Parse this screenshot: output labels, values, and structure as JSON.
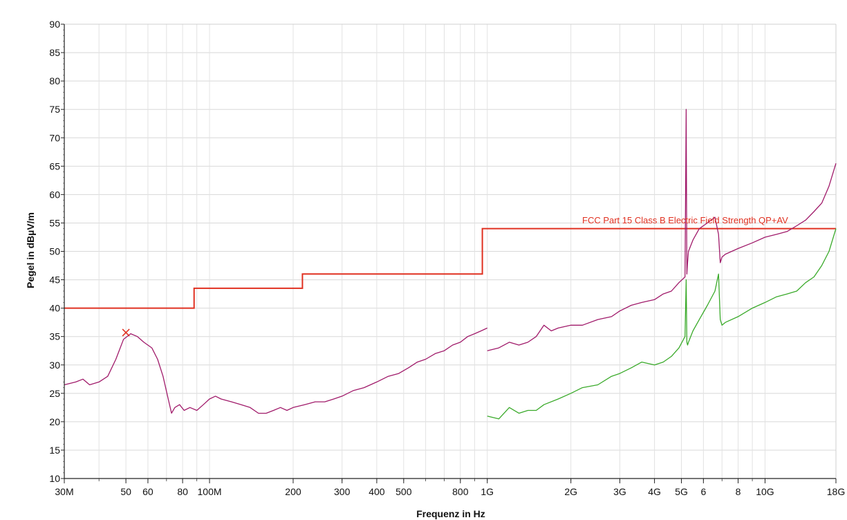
{
  "chart_data": {
    "type": "line",
    "xlabel": "Frequenz in Hz",
    "ylabel": "Pegel in dBµV/m",
    "x_scale": "log",
    "xlim": [
      30000000,
      18000000000
    ],
    "ylim": [
      10,
      90
    ],
    "grid": true,
    "y_ticks": [
      10,
      15,
      20,
      25,
      30,
      35,
      40,
      45,
      50,
      55,
      60,
      65,
      70,
      75,
      80,
      85,
      90
    ],
    "x_ticks": [
      {
        "value": 30000000,
        "label": "30M"
      },
      {
        "value": 50000000,
        "label": "50"
      },
      {
        "value": 60000000,
        "label": "60"
      },
      {
        "value": 80000000,
        "label": "80"
      },
      {
        "value": 100000000,
        "label": "100M"
      },
      {
        "value": 200000000,
        "label": "200"
      },
      {
        "value": 300000000,
        "label": "300"
      },
      {
        "value": 400000000,
        "label": "400"
      },
      {
        "value": 500000000,
        "label": "500"
      },
      {
        "value": 800000000,
        "label": "800"
      },
      {
        "value": 1000000000,
        "label": "1G"
      },
      {
        "value": 2000000000,
        "label": "2G"
      },
      {
        "value": 3000000000,
        "label": "3G"
      },
      {
        "value": 4000000000,
        "label": "4G"
      },
      {
        "value": 5000000000,
        "label": "5G"
      },
      {
        "value": 6000000000,
        "label": "6"
      },
      {
        "value": 8000000000,
        "label": "8"
      },
      {
        "value": 10000000000,
        "label": "10G"
      },
      {
        "value": 18000000000,
        "label": "18G"
      }
    ],
    "limit_line": {
      "name": "FCC Part 15 Class B Electric Field Strength QP+AV",
      "color": "#e03020",
      "x": [
        30000000,
        88000000,
        88000000,
        216000000,
        216000000,
        960000000,
        960000000,
        18000000000
      ],
      "y": [
        40,
        40,
        43.5,
        43.5,
        46,
        46,
        54,
        54
      ]
    },
    "series": [
      {
        "color": "#a01a6a",
        "x": [
          30000000,
          33000000,
          35000000,
          37000000,
          40000000,
          43000000,
          46000000,
          49000000,
          52000000,
          55000000,
          58000000,
          62000000,
          65000000,
          68000000,
          71000000,
          73000000,
          75000000,
          78000000,
          81000000,
          85000000,
          90000000,
          95000000,
          100000000,
          105000000,
          110000000,
          120000000,
          130000000,
          140000000,
          150000000,
          160000000,
          170000000,
          180000000,
          190000000,
          200000000,
          220000000,
          240000000,
          260000000,
          280000000,
          300000000,
          330000000,
          360000000,
          400000000,
          440000000,
          480000000,
          520000000,
          560000000,
          600000000,
          650000000,
          700000000,
          750000000,
          800000000,
          850000000,
          900000000,
          950000000,
          1000000000
        ],
        "y": [
          26.5,
          27,
          27.5,
          26.5,
          27,
          28,
          31,
          34.5,
          35.5,
          35,
          34,
          33,
          31,
          28,
          24,
          21.5,
          22.5,
          23,
          22,
          22.5,
          22,
          23,
          24,
          24.5,
          24,
          23.5,
          23,
          22.5,
          21.5,
          21.5,
          22,
          22.5,
          22,
          22.5,
          23,
          23.5,
          23.5,
          24,
          24.5,
          25.5,
          26,
          27,
          28,
          28.5,
          29.5,
          30.5,
          31,
          32,
          32.5,
          33.5,
          34,
          35,
          35.5,
          36,
          36.5
        ]
      },
      {
        "color": "#a01a6a",
        "x": [
          1000000000,
          1100000000,
          1200000000,
          1300000000,
          1400000000,
          1500000000,
          1600000000,
          1700000000,
          1800000000,
          2000000000,
          2200000000,
          2500000000,
          2800000000,
          3000000000,
          3300000000,
          3600000000,
          4000000000,
          4300000000,
          4600000000,
          4900000000,
          5150000000,
          5200000000,
          5230000000,
          5260000000,
          5300000000,
          5500000000,
          5800000000,
          6200000000,
          6600000000,
          6800000000,
          6900000000,
          7000000000,
          7200000000,
          8000000000,
          9000000000,
          10000000000,
          11000000000,
          12000000000,
          13000000000,
          14000000000,
          15000000000,
          16000000000,
          17000000000,
          18000000000
        ],
        "y": [
          32.5,
          33,
          34,
          33.5,
          34,
          35,
          37,
          36,
          36.5,
          37,
          37,
          38,
          38.5,
          39.5,
          40.5,
          41,
          41.5,
          42.5,
          43,
          44.5,
          45.5,
          75,
          46,
          48,
          50,
          52,
          54,
          55,
          56,
          53,
          48,
          49,
          49.5,
          50.5,
          51.5,
          52.5,
          53,
          53.5,
          54.5,
          55.5,
          57,
          58.5,
          61.5,
          65.5
        ]
      },
      {
        "color": "#3aaa2a",
        "x": [
          1000000000,
          1100000000,
          1200000000,
          1300000000,
          1400000000,
          1500000000,
          1600000000,
          1800000000,
          2000000000,
          2200000000,
          2500000000,
          2800000000,
          3000000000,
          3300000000,
          3600000000,
          4000000000,
          4300000000,
          4600000000,
          4900000000,
          5150000000,
          5200000000,
          5230000000,
          5260000000,
          5300000000,
          5500000000,
          5800000000,
          6200000000,
          6600000000,
          6800000000,
          6900000000,
          7000000000,
          7200000000,
          8000000000,
          9000000000,
          10000000000,
          11000000000,
          12000000000,
          13000000000,
          14000000000,
          15000000000,
          16000000000,
          17000000000,
          18000000000
        ],
        "y": [
          21,
          20.5,
          22.5,
          21.5,
          22,
          22,
          23,
          24,
          25,
          26,
          26.5,
          28,
          28.5,
          29.5,
          30.5,
          30,
          30.5,
          31.5,
          33,
          35,
          45,
          34,
          33.5,
          34,
          36,
          38,
          40.5,
          43,
          46,
          38,
          37,
          37.5,
          38.5,
          40,
          41,
          42,
          42.5,
          43,
          44.5,
          45.5,
          47.5,
          50,
          54
        ]
      }
    ],
    "markers": [
      {
        "x": 50000000,
        "y": 35.7,
        "symbol": "x",
        "color": "#e03020"
      }
    ]
  }
}
